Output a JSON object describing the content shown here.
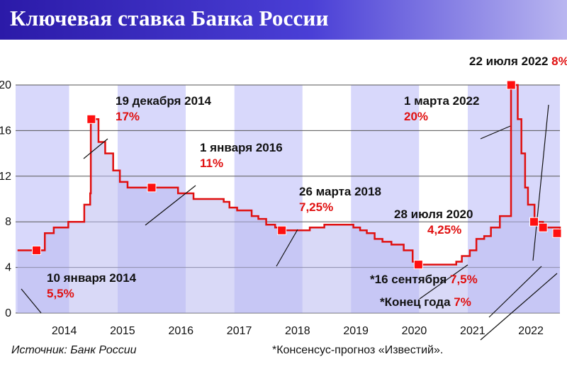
{
  "header": {
    "title": "Ключевая ставка Банка России"
  },
  "footer": {
    "source": "Источник: Банк России",
    "note": "*Консенсус-прогноз «Известий»."
  },
  "colors": {
    "line": "#e01010",
    "marker": "#ff1010",
    "shade": "#d8d8fb",
    "accent_text": "#e01010"
  },
  "chart_data": {
    "type": "line",
    "title": "Ключевая ставка Банка России",
    "xlabel": "",
    "ylabel": "",
    "ylim": [
      0,
      20
    ],
    "xlim": [
      "2013-09-01",
      "2022-12-31"
    ],
    "yticks": [
      "0",
      "4",
      "8",
      "12",
      "16",
      "20"
    ],
    "xticks": [
      "2014",
      "2015",
      "2016",
      "2017",
      "2018",
      "2019",
      "2020",
      "2021",
      "2022"
    ],
    "grid": true,
    "series": [
      {
        "x": [
          "2013-09-13",
          "2013-11-05",
          "2014-01-10",
          "2014-03-03",
          "2014-04-28",
          "2014-07-28",
          "2014-11-05",
          "2014-12-12",
          "2014-12-16",
          "2015-02-02",
          "2015-03-16",
          "2015-05-05",
          "2015-06-16",
          "2015-08-03",
          "2016-01-01",
          "2016-06-14",
          "2016-09-19",
          "2017-03-27",
          "2017-05-02",
          "2017-06-19",
          "2017-09-18",
          "2017-10-30",
          "2017-12-18",
          "2018-02-12",
          "2018-03-26",
          "2018-09-17",
          "2018-12-17",
          "2019-06-17",
          "2019-07-29",
          "2019-09-09",
          "2019-10-28",
          "2019-12-16",
          "2020-02-10",
          "2020-04-27",
          "2020-06-22",
          "2020-07-27",
          "2021-03-22",
          "2021-04-26",
          "2021-06-15",
          "2021-07-26",
          "2021-09-13",
          "2021-10-25",
          "2021-12-20",
          "2022-02-28",
          "2022-04-11",
          "2022-05-04",
          "2022-05-27",
          "2022-06-14",
          "2022-07-25",
          "2022-09-16",
          "2022-12-31"
        ],
        "values": [
          5.5,
          5.5,
          5.5,
          7,
          7.5,
          8,
          9.5,
          10.5,
          17,
          15,
          14,
          12.5,
          11.5,
          11,
          11,
          10.5,
          10,
          9.75,
          9.25,
          9,
          8.5,
          8.25,
          7.75,
          7.5,
          7.25,
          7.5,
          7.75,
          7.5,
          7.25,
          7,
          6.5,
          6.25,
          6,
          5.5,
          4.5,
          4.25,
          4.5,
          5,
          5.5,
          6.5,
          6.75,
          7.5,
          8.5,
          20,
          17,
          14,
          11,
          9.5,
          8,
          7.5,
          7
        ]
      }
    ],
    "annotations": [
      {
        "date": "10 января 2014",
        "value": "5,5%"
      },
      {
        "date": "19 декабря 2014",
        "value": "17%"
      },
      {
        "date": "1 января 2016",
        "value": "11%"
      },
      {
        "date": "26 марта 2018",
        "value": "7,25%"
      },
      {
        "date": "28 июля 2020",
        "value": "4,25%"
      },
      {
        "date": "1 марта 2022",
        "value": "20%"
      },
      {
        "date": "22 июля 2022",
        "value": "8%"
      },
      {
        "date": "*16 сентября",
        "value": "7,5%"
      },
      {
        "date": "*Конец года",
        "value": "7%"
      }
    ]
  }
}
